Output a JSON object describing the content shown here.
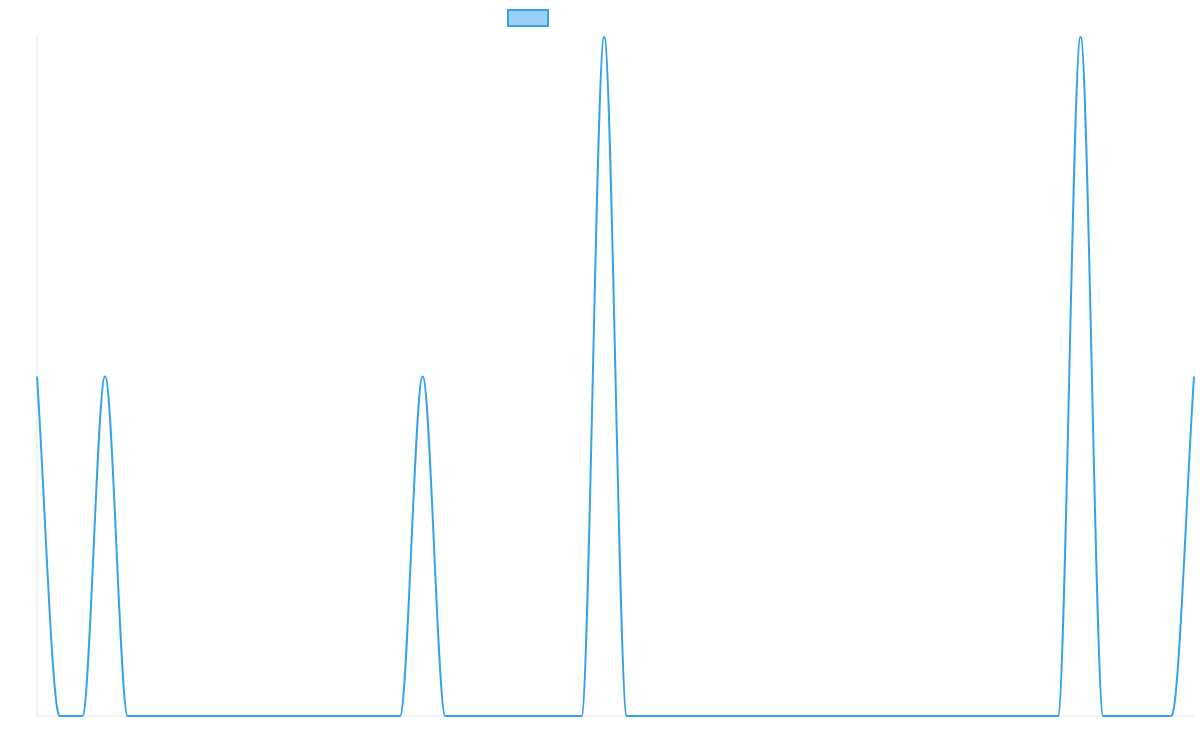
{
  "chart_data": {
    "type": "line",
    "title": "",
    "xlabel": "",
    "ylabel": "",
    "x_ticks_shown": false,
    "y_ticks_shown": false,
    "legend": {
      "placement": "top-center",
      "entries": [
        {
          "label": "",
          "fill_color": "#9ad0f5",
          "stroke_color": "#36a2eb"
        }
      ]
    },
    "grid": false,
    "x": [
      0,
      1,
      2,
      3,
      4,
      5,
      6,
      7,
      8,
      9,
      10,
      11,
      12,
      13,
      14,
      15,
      16,
      17,
      18,
      19,
      20,
      21,
      22,
      23,
      24,
      25,
      26,
      27,
      28,
      29,
      30,
      31,
      32,
      33,
      34,
      35,
      36,
      37,
      38,
      39,
      40,
      41,
      42,
      43,
      44,
      45,
      46,
      47,
      48,
      49,
      50,
      51
    ],
    "series": [
      {
        "color": "#36a2eb",
        "values": [
          1,
          0,
          0,
          1,
          0,
          0,
          0,
          0,
          0,
          0,
          0,
          0,
          0,
          0,
          0,
          0,
          0,
          1,
          0,
          0,
          0,
          0,
          0,
          0,
          0,
          2,
          0,
          0,
          0,
          0,
          0,
          0,
          0,
          0,
          0,
          0,
          0,
          0,
          0,
          0,
          0,
          0,
          0,
          0,
          0,
          0,
          2,
          0,
          0,
          0,
          0,
          1
        ]
      }
    ],
    "ylim": [
      0,
      2
    ]
  }
}
